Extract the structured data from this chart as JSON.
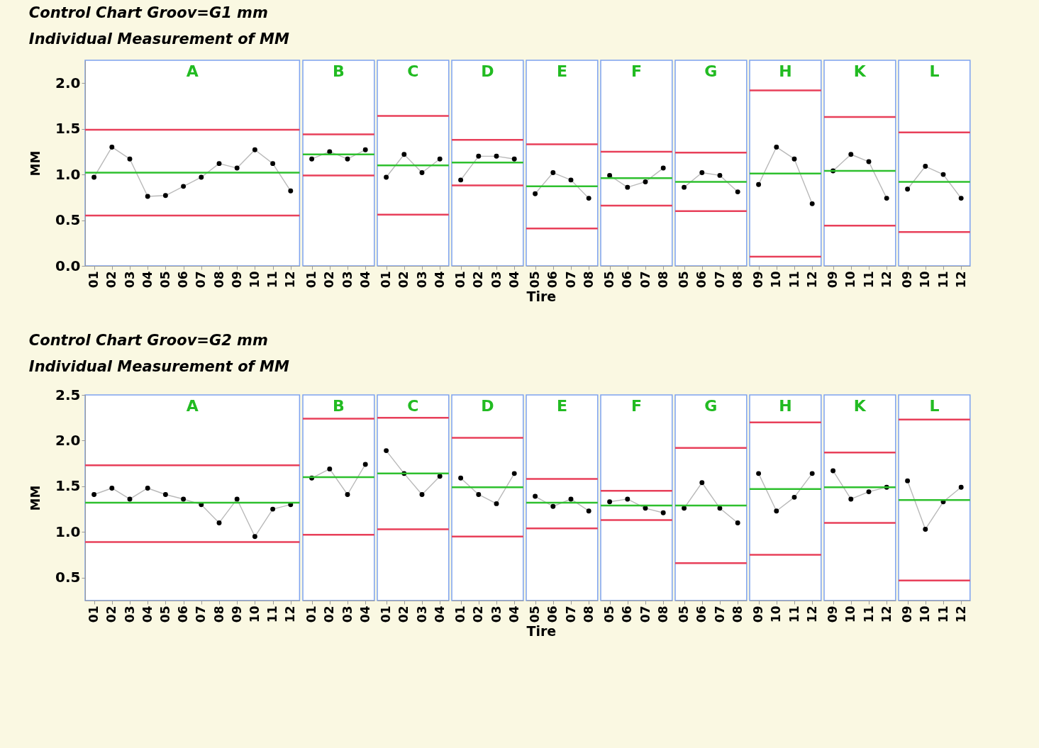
{
  "chart_data": [
    {
      "type": "line",
      "title": "Control Chart Groov=G1 mm",
      "subtitle": "Individual Measurement of MM",
      "ylabel": "MM",
      "marker": "circle",
      "categories": [
        "01",
        "02",
        "03",
        "04",
        "05",
        "06",
        "07",
        "08",
        "09",
        "10",
        "11",
        "12"
      ],
      "ylim": [
        0,
        2.25
      ],
      "yticks": [
        {
          "value": 0,
          "label": "0.0"
        },
        0.5,
        {
          "value": 1,
          "label": "1.0"
        },
        1.5,
        {
          "value": 2,
          "label": "2.0"
        }
      ],
      "annotations": [
        "A"
      ],
      "series": [
        {
          "color": "#000000",
          "values": [
            0.97,
            1.3,
            1.17,
            0.76,
            0.77,
            0.87,
            0.97,
            1.12,
            1.07,
            1.27,
            1.12,
            0.82
          ]
        }
      ],
      "ref_lines": [
        {
          "axis": "y",
          "value": 1.49,
          "color": "#e8405a"
        },
        {
          "axis": "y",
          "value": 1.02,
          "color": "#2ec02e"
        },
        {
          "axis": "y",
          "value": 0.55,
          "color": "#e8405a"
        }
      ]
    },
    {
      "type": "line",
      "marker": "circle",
      "tick_labels": "x",
      "categories": [
        "01",
        "02",
        "03",
        "04"
      ],
      "ylim": [
        0,
        2.25
      ],
      "annotations": [
        "B"
      ],
      "series": [
        {
          "color": "#000000",
          "values": [
            1.17,
            1.25,
            1.17,
            1.27
          ]
        }
      ],
      "ref_lines": [
        {
          "axis": "y",
          "value": 1.44,
          "color": "#e8405a"
        },
        {
          "axis": "y",
          "value": 1.22,
          "color": "#2ec02e"
        },
        {
          "axis": "y",
          "value": 0.99,
          "color": "#e8405a"
        }
      ]
    },
    {
      "type": "line",
      "marker": "circle",
      "tick_labels": "x",
      "categories": [
        "01",
        "02",
        "03",
        "04"
      ],
      "ylim": [
        0,
        2.25
      ],
      "annotations": [
        "C"
      ],
      "series": [
        {
          "color": "#000000",
          "values": [
            0.97,
            1.22,
            1.02,
            1.17
          ]
        }
      ],
      "ref_lines": [
        {
          "axis": "y",
          "value": 1.64,
          "color": "#e8405a"
        },
        {
          "axis": "y",
          "value": 1.1,
          "color": "#2ec02e"
        },
        {
          "axis": "y",
          "value": 0.56,
          "color": "#e8405a"
        }
      ]
    },
    {
      "type": "line",
      "marker": "circle",
      "tick_labels": "x",
      "categories": [
        "01",
        "02",
        "03",
        "04"
      ],
      "ylim": [
        0,
        2.25
      ],
      "annotations": [
        "D"
      ],
      "series": [
        {
          "color": "#000000",
          "values": [
            0.94,
            1.2,
            1.2,
            1.17
          ]
        }
      ],
      "ref_lines": [
        {
          "axis": "y",
          "value": 1.38,
          "color": "#e8405a"
        },
        {
          "axis": "y",
          "value": 1.13,
          "color": "#2ec02e"
        },
        {
          "axis": "y",
          "value": 0.88,
          "color": "#e8405a"
        }
      ]
    },
    {
      "type": "line",
      "marker": "circle",
      "tick_labels": "x",
      "xlabel": "Tire",
      "categories": [
        "05",
        "06",
        "07",
        "08"
      ],
      "ylim": [
        0,
        2.25
      ],
      "annotations": [
        "E"
      ],
      "series": [
        {
          "color": "#000000",
          "values": [
            0.79,
            1.02,
            0.94,
            0.74
          ]
        }
      ],
      "ref_lines": [
        {
          "axis": "y",
          "value": 1.33,
          "color": "#e8405a"
        },
        {
          "axis": "y",
          "value": 0.87,
          "color": "#2ec02e"
        },
        {
          "axis": "y",
          "value": 0.41,
          "color": "#e8405a"
        }
      ]
    },
    {
      "type": "line",
      "marker": "circle",
      "tick_labels": "x",
      "categories": [
        "05",
        "06",
        "07",
        "08"
      ],
      "ylim": [
        0,
        2.25
      ],
      "annotations": [
        "F"
      ],
      "series": [
        {
          "color": "#000000",
          "values": [
            0.99,
            0.86,
            0.92,
            1.07
          ]
        }
      ],
      "ref_lines": [
        {
          "axis": "y",
          "value": 1.25,
          "color": "#e8405a"
        },
        {
          "axis": "y",
          "value": 0.96,
          "color": "#2ec02e"
        },
        {
          "axis": "y",
          "value": 0.66,
          "color": "#e8405a"
        }
      ]
    },
    {
      "type": "line",
      "marker": "circle",
      "tick_labels": "x",
      "categories": [
        "05",
        "06",
        "07",
        "08"
      ],
      "ylim": [
        0,
        2.25
      ],
      "annotations": [
        "G"
      ],
      "series": [
        {
          "color": "#000000",
          "values": [
            0.86,
            1.02,
            0.99,
            0.81
          ]
        }
      ],
      "ref_lines": [
        {
          "axis": "y",
          "value": 1.24,
          "color": "#e8405a"
        },
        {
          "axis": "y",
          "value": 0.92,
          "color": "#2ec02e"
        },
        {
          "axis": "y",
          "value": 0.6,
          "color": "#e8405a"
        }
      ]
    },
    {
      "type": "line",
      "marker": "circle",
      "tick_labels": "x",
      "categories": [
        "09",
        "10",
        "11",
        "12"
      ],
      "ylim": [
        0,
        2.25
      ],
      "annotations": [
        "H"
      ],
      "series": [
        {
          "color": "#000000",
          "values": [
            0.89,
            1.3,
            1.17,
            0.68
          ]
        }
      ],
      "ref_lines": [
        {
          "axis": "y",
          "value": 1.92,
          "color": "#e8405a"
        },
        {
          "axis": "y",
          "value": 1.01,
          "color": "#2ec02e"
        },
        {
          "axis": "y",
          "value": 0.1,
          "color": "#e8405a"
        }
      ]
    },
    {
      "type": "line",
      "marker": "circle",
      "tick_labels": "x",
      "categories": [
        "09",
        "10",
        "11",
        "12"
      ],
      "ylim": [
        0,
        2.25
      ],
      "annotations": [
        "K"
      ],
      "series": [
        {
          "color": "#000000",
          "values": [
            1.04,
            1.22,
            1.14,
            0.74
          ]
        }
      ],
      "ref_lines": [
        {
          "axis": "y",
          "value": 1.63,
          "color": "#e8405a"
        },
        {
          "axis": "y",
          "value": 1.04,
          "color": "#2ec02e"
        },
        {
          "axis": "y",
          "value": 0.44,
          "color": "#e8405a"
        }
      ]
    },
    {
      "type": "line",
      "marker": "circle",
      "tick_labels": "x",
      "categories": [
        "09",
        "10",
        "11",
        "12"
      ],
      "ylim": [
        0,
        2.25
      ],
      "annotations": [
        "L"
      ],
      "series": [
        {
          "color": "#000000",
          "values": [
            0.84,
            1.09,
            1.0,
            0.74
          ]
        }
      ],
      "ref_lines": [
        {
          "axis": "y",
          "value": 1.46,
          "color": "#e8405a"
        },
        {
          "axis": "y",
          "value": 0.92,
          "color": "#2ec02e"
        },
        {
          "axis": "y",
          "value": 0.37,
          "color": "#e8405a"
        }
      ]
    },
    {
      "type": "line",
      "title": "Control Chart Groov=G2 mm",
      "subtitle": "Individual Measurement of MM",
      "ylabel": "MM",
      "marker": "circle",
      "categories": [
        "01",
        "02",
        "03",
        "04",
        "05",
        "06",
        "07",
        "08",
        "09",
        "10",
        "11",
        "12"
      ],
      "ylim": [
        0.25,
        2.5
      ],
      "yticks": [
        0.5,
        {
          "value": 1,
          "label": "1.0"
        },
        1.5,
        {
          "value": 2,
          "label": "2.0"
        },
        2.5
      ],
      "annotations": [
        "A"
      ],
      "series": [
        {
          "color": "#000000",
          "values": [
            1.41,
            1.48,
            1.36,
            1.48,
            1.41,
            1.36,
            1.3,
            1.1,
            1.36,
            0.95,
            1.25,
            1.3
          ]
        }
      ],
      "ref_lines": [
        {
          "axis": "y",
          "value": 1.73,
          "color": "#e8405a"
        },
        {
          "axis": "y",
          "value": 1.32,
          "color": "#2ec02e"
        },
        {
          "axis": "y",
          "value": 0.89,
          "color": "#e8405a"
        }
      ]
    },
    {
      "type": "line",
      "marker": "circle",
      "tick_labels": "x",
      "categories": [
        "01",
        "02",
        "03",
        "04"
      ],
      "ylim": [
        0.25,
        2.5
      ],
      "annotations": [
        "B"
      ],
      "series": [
        {
          "color": "#000000",
          "values": [
            1.59,
            1.69,
            1.41,
            1.74
          ]
        }
      ],
      "ref_lines": [
        {
          "axis": "y",
          "value": 2.24,
          "color": "#e8405a"
        },
        {
          "axis": "y",
          "value": 1.6,
          "color": "#2ec02e"
        },
        {
          "axis": "y",
          "value": 0.97,
          "color": "#e8405a"
        }
      ]
    },
    {
      "type": "line",
      "marker": "circle",
      "tick_labels": "x",
      "categories": [
        "01",
        "02",
        "03",
        "04"
      ],
      "ylim": [
        0.25,
        2.5
      ],
      "annotations": [
        "C"
      ],
      "series": [
        {
          "color": "#000000",
          "values": [
            1.89,
            1.64,
            1.41,
            1.61
          ]
        }
      ],
      "ref_lines": [
        {
          "axis": "y",
          "value": 2.25,
          "color": "#e8405a"
        },
        {
          "axis": "y",
          "value": 1.64,
          "color": "#2ec02e"
        },
        {
          "axis": "y",
          "value": 1.03,
          "color": "#e8405a"
        }
      ]
    },
    {
      "type": "line",
      "marker": "circle",
      "tick_labels": "x",
      "categories": [
        "01",
        "02",
        "03",
        "04"
      ],
      "ylim": [
        0.25,
        2.5
      ],
      "annotations": [
        "D"
      ],
      "series": [
        {
          "color": "#000000",
          "values": [
            1.59,
            1.41,
            1.31,
            1.64
          ]
        }
      ],
      "ref_lines": [
        {
          "axis": "y",
          "value": 2.03,
          "color": "#e8405a"
        },
        {
          "axis": "y",
          "value": 1.49,
          "color": "#2ec02e"
        },
        {
          "axis": "y",
          "value": 0.95,
          "color": "#e8405a"
        }
      ]
    },
    {
      "type": "line",
      "marker": "circle",
      "tick_labels": "x",
      "xlabel": "Tire",
      "categories": [
        "05",
        "06",
        "07",
        "08"
      ],
      "ylim": [
        0.25,
        2.5
      ],
      "annotations": [
        "E"
      ],
      "series": [
        {
          "color": "#000000",
          "values": [
            1.39,
            1.28,
            1.36,
            1.23
          ]
        }
      ],
      "ref_lines": [
        {
          "axis": "y",
          "value": 1.58,
          "color": "#e8405a"
        },
        {
          "axis": "y",
          "value": 1.32,
          "color": "#2ec02e"
        },
        {
          "axis": "y",
          "value": 1.04,
          "color": "#e8405a"
        }
      ]
    },
    {
      "type": "line",
      "marker": "circle",
      "tick_labels": "x",
      "categories": [
        "05",
        "06",
        "07",
        "08"
      ],
      "ylim": [
        0.25,
        2.5
      ],
      "annotations": [
        "F"
      ],
      "series": [
        {
          "color": "#000000",
          "values": [
            1.33,
            1.36,
            1.26,
            1.21
          ]
        }
      ],
      "ref_lines": [
        {
          "axis": "y",
          "value": 1.45,
          "color": "#e8405a"
        },
        {
          "axis": "y",
          "value": 1.29,
          "color": "#2ec02e"
        },
        {
          "axis": "y",
          "value": 1.13,
          "color": "#e8405a"
        }
      ]
    },
    {
      "type": "line",
      "marker": "circle",
      "tick_labels": "x",
      "categories": [
        "05",
        "06",
        "07",
        "08"
      ],
      "ylim": [
        0.25,
        2.5
      ],
      "annotations": [
        "G"
      ],
      "series": [
        {
          "color": "#000000",
          "values": [
            1.26,
            1.54,
            1.26,
            1.1
          ]
        }
      ],
      "ref_lines": [
        {
          "axis": "y",
          "value": 1.92,
          "color": "#e8405a"
        },
        {
          "axis": "y",
          "value": 1.29,
          "color": "#2ec02e"
        },
        {
          "axis": "y",
          "value": 0.66,
          "color": "#e8405a"
        }
      ]
    },
    {
      "type": "line",
      "marker": "circle",
      "tick_labels": "x",
      "categories": [
        "09",
        "10",
        "11",
        "12"
      ],
      "ylim": [
        0.25,
        2.5
      ],
      "annotations": [
        "H"
      ],
      "series": [
        {
          "color": "#000000",
          "values": [
            1.64,
            1.23,
            1.38,
            1.64
          ]
        }
      ],
      "ref_lines": [
        {
          "axis": "y",
          "value": 2.2,
          "color": "#e8405a"
        },
        {
          "axis": "y",
          "value": 1.47,
          "color": "#2ec02e"
        },
        {
          "axis": "y",
          "value": 0.75,
          "color": "#e8405a"
        }
      ]
    },
    {
      "type": "line",
      "marker": "circle",
      "tick_labels": "x",
      "categories": [
        "09",
        "10",
        "11",
        "12"
      ],
      "ylim": [
        0.25,
        2.5
      ],
      "annotations": [
        "K"
      ],
      "series": [
        {
          "color": "#000000",
          "values": [
            1.67,
            1.36,
            1.44,
            1.49
          ]
        }
      ],
      "ref_lines": [
        {
          "axis": "y",
          "value": 1.87,
          "color": "#e8405a"
        },
        {
          "axis": "y",
          "value": 1.49,
          "color": "#2ec02e"
        },
        {
          "axis": "y",
          "value": 1.1,
          "color": "#e8405a"
        }
      ]
    },
    {
      "type": "line",
      "marker": "circle",
      "tick_labels": "x",
      "categories": [
        "09",
        "10",
        "11",
        "12"
      ],
      "ylim": [
        0.25,
        2.5
      ],
      "annotations": [
        "L"
      ],
      "series": [
        {
          "color": "#000000",
          "values": [
            1.56,
            1.03,
            1.33,
            1.49
          ]
        }
      ],
      "ref_lines": [
        {
          "axis": "y",
          "value": 2.23,
          "color": "#e8405a"
        },
        {
          "axis": "y",
          "value": 1.35,
          "color": "#2ec02e"
        },
        {
          "axis": "y",
          "value": 0.47,
          "color": "#e8405a"
        }
      ]
    }
  ]
}
